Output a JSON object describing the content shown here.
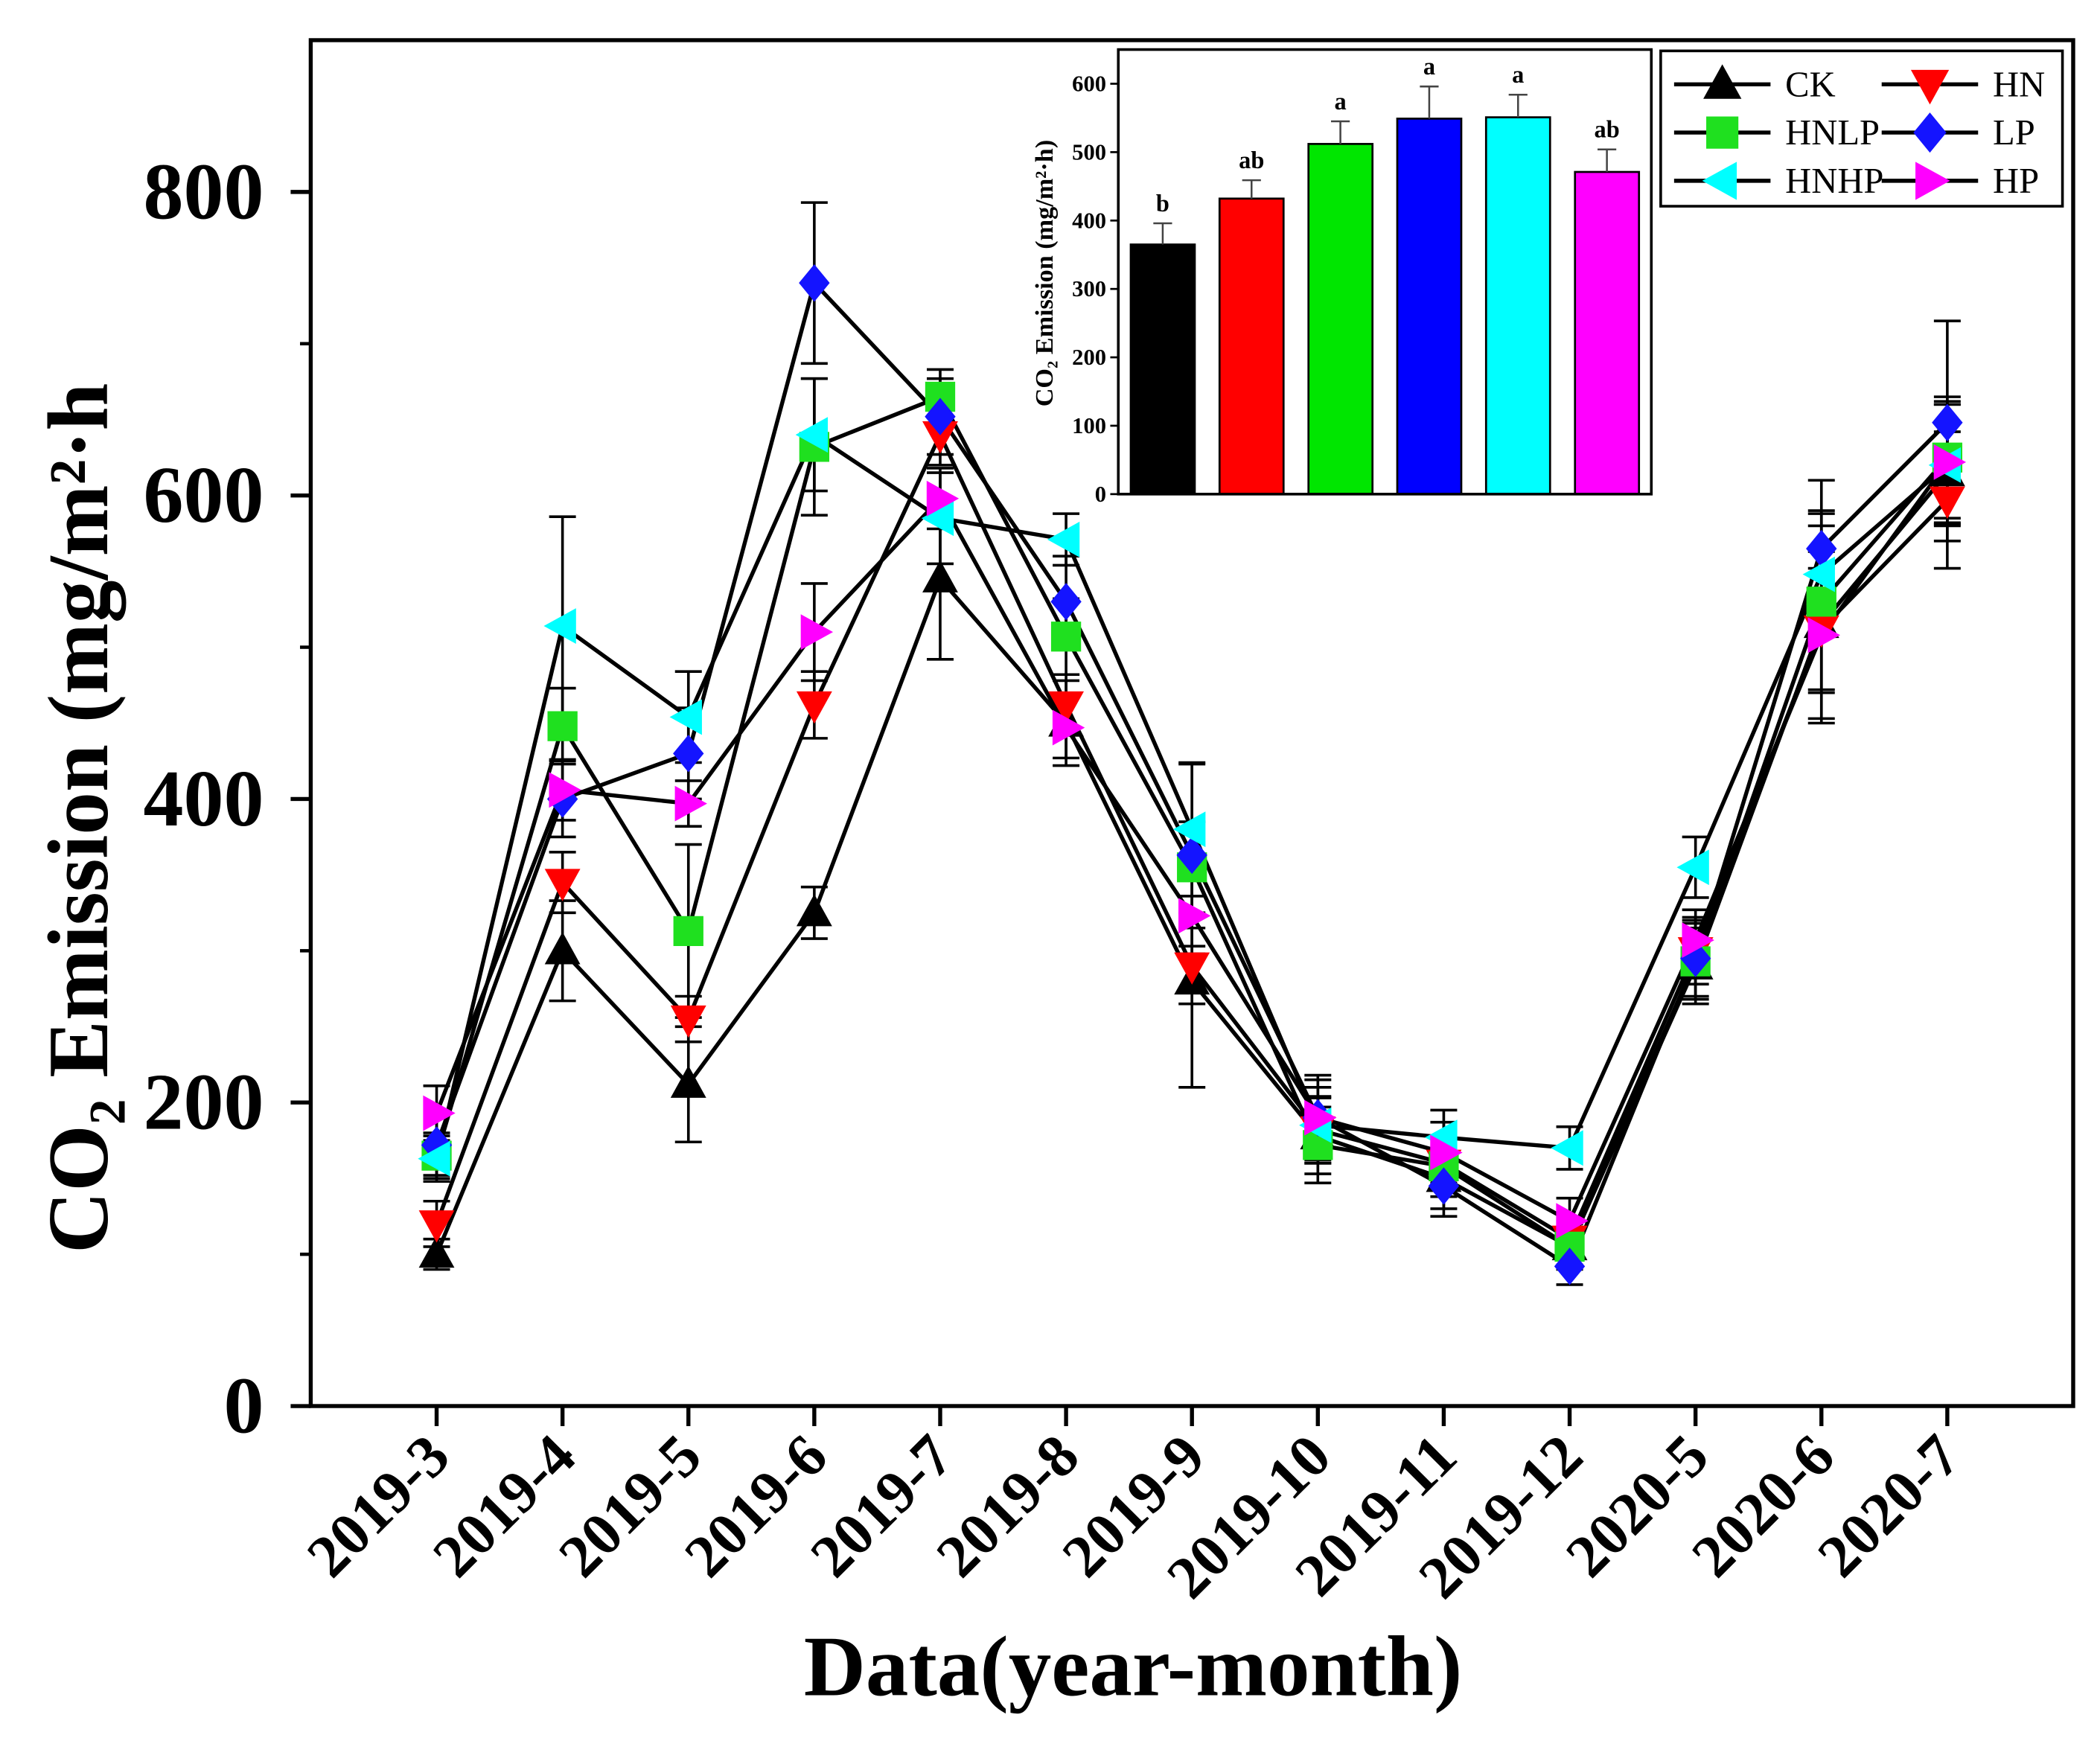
{
  "chart_data": [
    {
      "type": "line",
      "title": "",
      "xlabel": "Data(year-month)",
      "ylabel": "CO₂ Emission (mg/m²·h",
      "categories": [
        "2019-3",
        "2019-4",
        "2019-5",
        "2019-6",
        "2019-7",
        "2019-8",
        "2019-9",
        "2019-10",
        "2019-11",
        "2019-12",
        "2020-5",
        "2020-6",
        "2020-7"
      ],
      "ylim": [
        0,
        900
      ],
      "yticks": [
        0,
        200,
        400,
        600,
        800
      ],
      "grid": false,
      "legend": "top-right",
      "series": [
        {
          "name": "CK",
          "color": "#000000",
          "marker": "triangle-up",
          "values": [
            100,
            300,
            212,
            325,
            545,
            450,
            280,
            178,
            150,
            105,
            290,
            515,
            615
          ],
          "errors": [
            10,
            33,
            38,
            17,
            53,
            28,
            70,
            25,
            20,
            15,
            25,
            65,
            45
          ]
        },
        {
          "name": "HN",
          "color": "#ff0000",
          "marker": "triangle-down",
          "values": [
            120,
            345,
            255,
            462,
            640,
            462,
            290,
            182,
            160,
            110,
            300,
            512,
            597
          ],
          "errors": [
            15,
            20,
            15,
            22,
            20,
            20,
            25,
            22,
            18,
            12,
            22,
            40,
            45
          ]
        },
        {
          "name": "HNLP",
          "color": "#1fe01f",
          "marker": "square",
          "values": [
            165,
            448,
            313,
            632,
            665,
            507,
            355,
            172,
            158,
            105,
            293,
            530,
            625
          ],
          "errors": [
            15,
            25,
            57,
            45,
            18,
            25,
            30,
            25,
            20,
            12,
            25,
            60,
            40
          ]
        },
        {
          "name": "LP",
          "color": "#1414ff",
          "marker": "diamond",
          "values": [
            172,
            400,
            430,
            740,
            652,
            530,
            363,
            190,
            145,
            92,
            295,
            565,
            648
          ],
          "errors": [
            20,
            25,
            30,
            53,
            25,
            30,
            60,
            25,
            20,
            12,
            25,
            45,
            67
          ]
        },
        {
          "name": "HNHP",
          "color": "#00ffff",
          "marker": "triangle-left",
          "values": [
            163,
            514,
            454,
            640,
            585,
            571,
            380,
            185,
            177,
            170,
            355,
            548,
            620
          ],
          "errors": [
            15,
            72,
            30,
            37,
            30,
            17,
            44,
            25,
            18,
            14,
            20,
            40,
            40
          ]
        },
        {
          "name": "HP",
          "color": "#ff00ff",
          "marker": "triangle-right",
          "values": [
            193,
            406,
            397,
            510,
            598,
            447,
            323,
            190,
            167,
            122,
            307,
            508,
            622
          ],
          "errors": [
            18,
            20,
            15,
            32,
            20,
            20,
            25,
            28,
            20,
            15,
            20,
            55,
            40
          ]
        }
      ]
    },
    {
      "type": "bar",
      "title": "",
      "ylabel": "CO₂ Emission (mg/m²·h)",
      "categories": [
        "CK",
        "HN",
        "HNLP",
        "LP",
        "HNHP",
        "HP"
      ],
      "values": [
        365,
        432,
        512,
        549,
        551,
        471
      ],
      "errors": [
        31,
        27,
        33,
        47,
        33,
        33
      ],
      "significance": [
        "b",
        "ab",
        "a",
        "a",
        "a",
        "ab"
      ],
      "colors": [
        "#000000",
        "#ff0000",
        "#00e600",
        "#0000ff",
        "#00ffff",
        "#ff00ff"
      ],
      "ylim": [
        0,
        650
      ],
      "yticks": [
        0,
        100,
        200,
        300,
        400,
        500,
        600
      ],
      "grid": false
    }
  ]
}
